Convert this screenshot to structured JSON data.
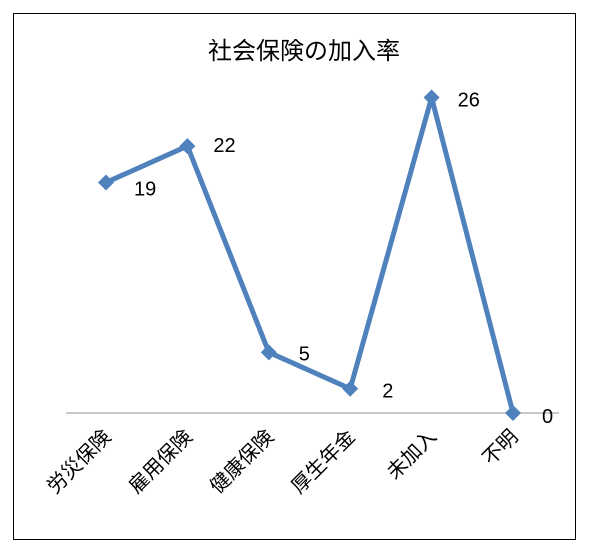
{
  "chart_data": {
    "type": "line",
    "title": "社会保険の加入率",
    "categories": [
      "労災保険",
      "雇用保険",
      "健康保険",
      "厚生年金",
      "未加入",
      "不明"
    ],
    "values": [
      19,
      22,
      5,
      2,
      26,
      0
    ],
    "xlabel": "",
    "ylabel": "",
    "ylim": [
      0,
      30
    ],
    "grid": false,
    "legend": "none",
    "series_color": "#4F81BD",
    "axis_color": "#A6A6A6"
  }
}
